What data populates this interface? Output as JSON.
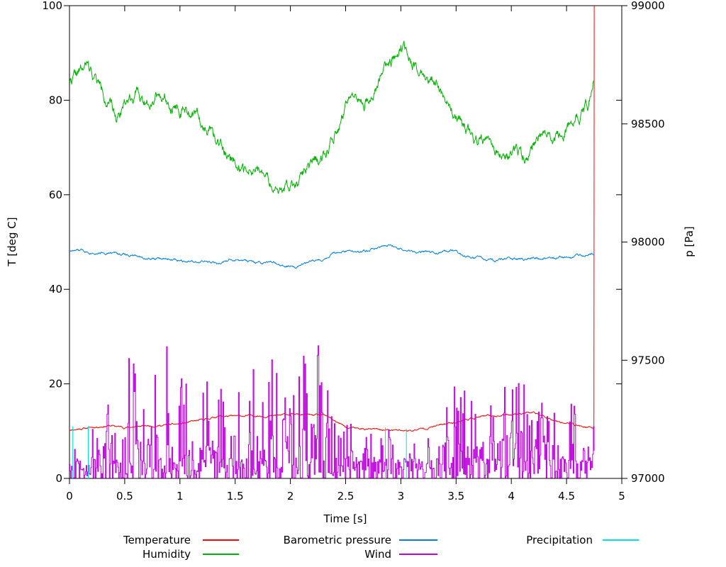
{
  "chart_data": {
    "type": "line",
    "title": "",
    "xlabel": "Time [s]",
    "ylabel": "T [deg C]",
    "y2label": "p [Pa]",
    "xlim": [
      0,
      5
    ],
    "ylim": [
      0,
      100
    ],
    "y2lim": [
      97000,
      99000
    ],
    "grid": false,
    "legend_position": "below-plot, 3 columns x 2 rows",
    "background": "#ffffff",
    "frame_color": "#000000",
    "data_end_time": 4.75,
    "xticks": [
      {
        "v": 0,
        "l": "0"
      },
      {
        "v": 0.5,
        "l": "0.5"
      },
      {
        "v": 1,
        "l": "1"
      },
      {
        "v": 1.5,
        "l": "1.5"
      },
      {
        "v": 2,
        "l": "2"
      },
      {
        "v": 2.5,
        "l": "2.5"
      },
      {
        "v": 3,
        "l": "3"
      },
      {
        "v": 3.5,
        "l": "3.5"
      },
      {
        "v": 4,
        "l": "4"
      },
      {
        "v": 4.5,
        "l": "4.5"
      },
      {
        "v": 5,
        "l": "5"
      }
    ],
    "yticks": [
      {
        "v": 0,
        "l": "0"
      },
      {
        "v": 20,
        "l": "20"
      },
      {
        "v": 40,
        "l": "40"
      },
      {
        "v": 60,
        "l": "60"
      },
      {
        "v": 80,
        "l": "80"
      },
      {
        "v": 100,
        "l": "100"
      }
    ],
    "y2ticks": [
      {
        "v": 97000,
        "l": "97000"
      },
      {
        "v": 97500,
        "l": "97500"
      },
      {
        "v": 98000,
        "l": "98000"
      },
      {
        "v": 98500,
        "l": "98500"
      },
      {
        "v": 99000,
        "l": "99000"
      }
    ],
    "series": [
      {
        "name": "Temperature",
        "color": "#ff0000",
        "axis": "y1",
        "style": "noisy-line",
        "noise": 0.12,
        "seed": 11,
        "end_spike_to": 100,
        "anchors": [
          [
            0,
            10.3
          ],
          [
            0.2,
            10.8
          ],
          [
            0.35,
            11.2
          ],
          [
            0.5,
            10.8
          ],
          [
            0.7,
            11.1
          ],
          [
            0.9,
            11.3
          ],
          [
            1.0,
            11.5
          ],
          [
            1.2,
            12.3
          ],
          [
            1.35,
            13.2
          ],
          [
            1.5,
            13.1
          ],
          [
            1.7,
            13.3
          ],
          [
            1.85,
            13.2
          ],
          [
            2.0,
            13.6
          ],
          [
            2.15,
            13.4
          ],
          [
            2.3,
            13.3
          ],
          [
            2.4,
            12.2
          ],
          [
            2.52,
            10.6
          ],
          [
            2.7,
            10.4
          ],
          [
            2.9,
            10.2
          ],
          [
            3.1,
            10.1
          ],
          [
            3.3,
            11.0
          ],
          [
            3.5,
            12.0
          ],
          [
            3.7,
            13.0
          ],
          [
            3.9,
            13.3
          ],
          [
            4.0,
            13.6
          ],
          [
            4.15,
            14.0
          ],
          [
            4.25,
            13.5
          ],
          [
            4.35,
            12.7
          ],
          [
            4.5,
            11.7
          ],
          [
            4.6,
            11.2
          ],
          [
            4.75,
            10.5
          ]
        ]
      },
      {
        "name": "Humidity",
        "color": "#00b400",
        "axis": "y1",
        "style": "noisy-line",
        "noise": 0.8,
        "seed": 22,
        "anchors": [
          [
            0,
            84.5
          ],
          [
            0.08,
            85.5
          ],
          [
            0.16,
            87
          ],
          [
            0.25,
            84
          ],
          [
            0.33,
            81
          ],
          [
            0.42,
            76
          ],
          [
            0.5,
            80
          ],
          [
            0.6,
            81.5
          ],
          [
            0.7,
            79.5
          ],
          [
            0.78,
            82
          ],
          [
            0.9,
            80.5
          ],
          [
            1.0,
            78.5
          ],
          [
            1.1,
            77
          ],
          [
            1.2,
            75.5
          ],
          [
            1.3,
            72
          ],
          [
            1.4,
            69.5
          ],
          [
            1.5,
            67.5
          ],
          [
            1.62,
            64.5
          ],
          [
            1.7,
            65
          ],
          [
            1.8,
            62.5
          ],
          [
            1.93,
            60
          ],
          [
            2.0,
            62.5
          ],
          [
            2.1,
            63.5
          ],
          [
            2.2,
            66
          ],
          [
            2.3,
            69
          ],
          [
            2.4,
            72.5
          ],
          [
            2.5,
            77
          ],
          [
            2.58,
            80
          ],
          [
            2.65,
            78.5
          ],
          [
            2.75,
            82
          ],
          [
            2.85,
            86.5
          ],
          [
            3.0,
            91.5
          ],
          [
            3.1,
            88
          ],
          [
            3.2,
            86.5
          ],
          [
            3.3,
            84.5
          ],
          [
            3.4,
            80.5
          ],
          [
            3.5,
            76.5
          ],
          [
            3.6,
            73.5
          ],
          [
            3.7,
            71.5
          ],
          [
            3.8,
            70.5
          ],
          [
            3.95,
            68
          ],
          [
            4.05,
            70.5
          ],
          [
            4.1,
            68.5
          ],
          [
            4.2,
            70
          ],
          [
            4.3,
            72.5
          ],
          [
            4.4,
            72
          ],
          [
            4.5,
            74.5
          ],
          [
            4.6,
            76.5
          ],
          [
            4.7,
            79
          ],
          [
            4.75,
            84.5
          ]
        ]
      },
      {
        "name": "Barometric pressure",
        "color": "#0080d8",
        "axis": "y2",
        "style": "noisy-line",
        "noise": 3.5,
        "seed": 33,
        "anchors": [
          [
            0,
            97964
          ],
          [
            0.3,
            97958
          ],
          [
            0.5,
            97948
          ],
          [
            0.7,
            97932
          ],
          [
            0.9,
            97926
          ],
          [
            1.1,
            97924
          ],
          [
            1.3,
            97912
          ],
          [
            1.35,
            97906
          ],
          [
            1.45,
            97924
          ],
          [
            1.6,
            97918
          ],
          [
            1.75,
            97906
          ],
          [
            1.85,
            97910
          ],
          [
            1.95,
            97894
          ],
          [
            2.05,
            97900
          ],
          [
            2.2,
            97918
          ],
          [
            2.3,
            97924
          ],
          [
            2.38,
            97958
          ],
          [
            2.5,
            97956
          ],
          [
            2.6,
            97960
          ],
          [
            2.7,
            97966
          ],
          [
            2.8,
            97976
          ],
          [
            2.9,
            97986
          ],
          [
            3.0,
            97970
          ],
          [
            3.1,
            97960
          ],
          [
            3.3,
            97954
          ],
          [
            3.45,
            97962
          ],
          [
            3.6,
            97940
          ],
          [
            3.75,
            97930
          ],
          [
            3.85,
            97918
          ],
          [
            3.95,
            97926
          ],
          [
            4.1,
            97928
          ],
          [
            4.25,
            97936
          ],
          [
            4.4,
            97938
          ],
          [
            4.55,
            97940
          ],
          [
            4.7,
            97946
          ],
          [
            4.75,
            97950
          ]
        ]
      },
      {
        "name": "Wind",
        "color": "#bf00e0",
        "axis": "y1",
        "style": "spiky-steps",
        "seed": 44,
        "base": 4,
        "envelope": [
          [
            0,
            6
          ],
          [
            0.1,
            8
          ],
          [
            0.3,
            14
          ],
          [
            0.5,
            25
          ],
          [
            0.7,
            30
          ],
          [
            0.9,
            34
          ],
          [
            1.0,
            22
          ],
          [
            1.2,
            20
          ],
          [
            1.4,
            22
          ],
          [
            1.6,
            26
          ],
          [
            1.8,
            27
          ],
          [
            2.0,
            31
          ],
          [
            2.1,
            28
          ],
          [
            2.25,
            29
          ],
          [
            2.4,
            26
          ],
          [
            2.5,
            14
          ],
          [
            2.7,
            10
          ],
          [
            2.9,
            12
          ],
          [
            3.1,
            9
          ],
          [
            3.3,
            10
          ],
          [
            3.45,
            25
          ],
          [
            3.55,
            20
          ],
          [
            3.7,
            18
          ],
          [
            3.9,
            20
          ],
          [
            4.1,
            21
          ],
          [
            4.3,
            16
          ],
          [
            4.5,
            15
          ],
          [
            4.65,
            18
          ],
          [
            4.75,
            14
          ]
        ]
      },
      {
        "name": "Precipitation",
        "color": "#00e0e0",
        "axis": "y1",
        "style": "impulses",
        "spikes": [
          [
            0.03,
            11
          ],
          [
            0.17,
            11
          ],
          [
            2.86,
            10.8
          ],
          [
            3.05,
            10.5
          ]
        ]
      }
    ]
  }
}
